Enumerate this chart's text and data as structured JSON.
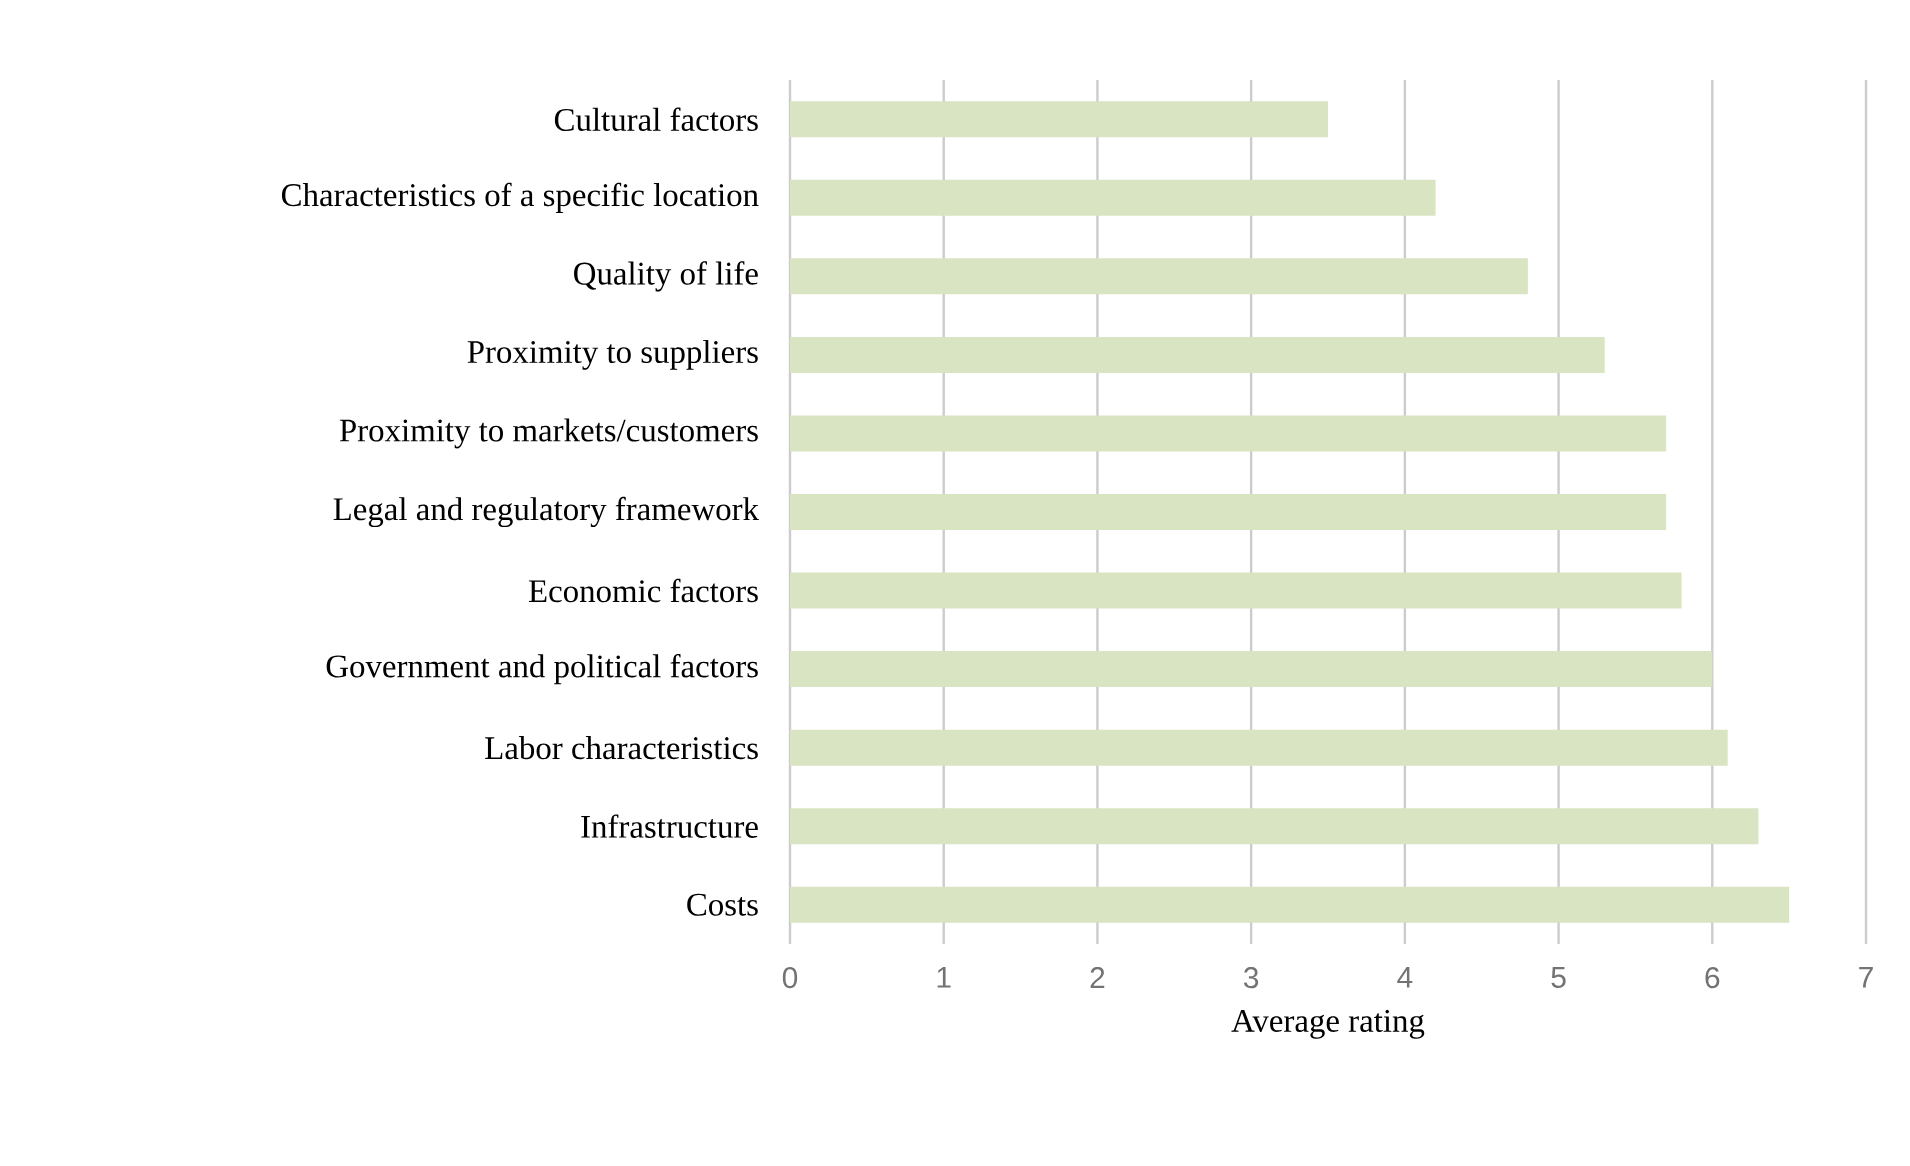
{
  "chart_data": {
    "type": "bar",
    "orientation": "horizontal",
    "xlabel": "Average rating",
    "categories": [
      "Cultural factors",
      "Characteristics of a specific location",
      "Quality of life",
      "Proximity to suppliers",
      "Proximity to markets/customers",
      "Legal and regulatory framework",
      "Economic factors",
      "Government and political factors",
      "Labor characteristics",
      "Infrastructure",
      "Costs"
    ],
    "values": [
      3.5,
      4.2,
      4.8,
      5.3,
      5.7,
      5.7,
      5.8,
      6.0,
      6.1,
      6.3,
      6.5
    ],
    "color": "#d9e4c3",
    "xlim": [
      0,
      7
    ],
    "xticks": [
      0,
      1,
      2,
      3,
      4,
      5,
      6,
      7
    ],
    "grid": "x"
  }
}
